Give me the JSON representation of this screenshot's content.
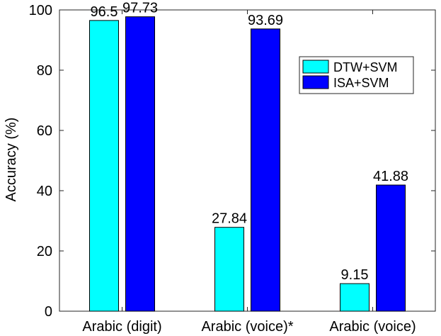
{
  "chart_data": {
    "type": "bar",
    "categories": [
      "Arabic (digit)",
      "Arabic (voice)*",
      "Arabic (voice)"
    ],
    "series": [
      {
        "name": "DTW+SVM",
        "values": [
          96.5,
          27.84,
          9.15
        ],
        "labels": [
          "96.5",
          "27.84",
          "9.15"
        ],
        "color": "#00FFFF"
      },
      {
        "name": "ISA+SVM",
        "values": [
          97.73,
          93.69,
          41.88
        ],
        "labels": [
          "97.73",
          "93.69",
          "41.88"
        ],
        "color": "#0000FF"
      }
    ],
    "title": "",
    "xlabel": "",
    "ylabel": "Accuracy (%)",
    "ylim": [
      0,
      100
    ],
    "yticks": [
      0,
      20,
      40,
      60,
      80,
      100
    ],
    "grid": false,
    "legend_position": "top-right"
  }
}
